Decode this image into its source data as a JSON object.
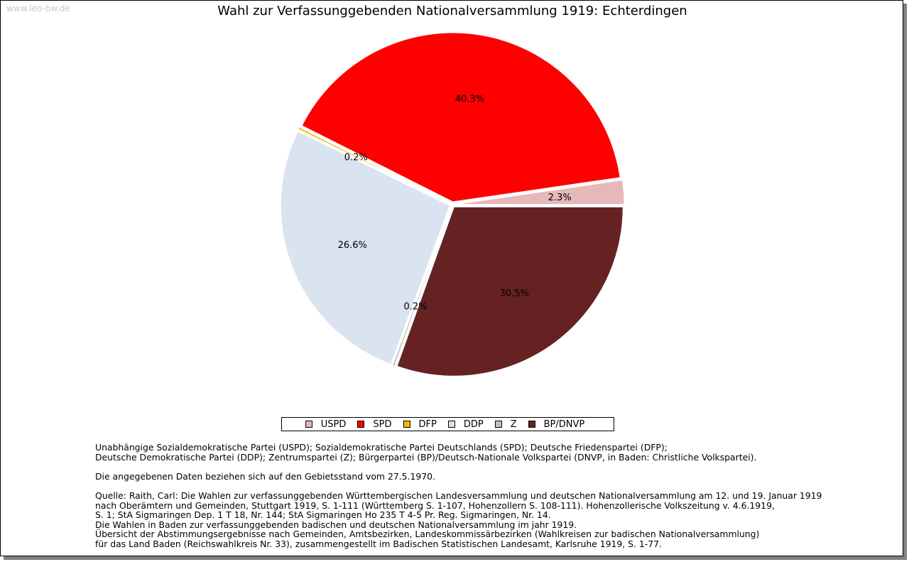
{
  "watermark": "www.leo-bw.de",
  "chart_data": {
    "type": "pie",
    "title": "Wahl zur Verfassunggebenden Nationalversammlung 1919: Echterdingen",
    "categories": [
      "USPD",
      "SPD",
      "DFP",
      "DDP",
      "Z",
      "BP/DNVP"
    ],
    "values": [
      2.3,
      40.3,
      0.2,
      26.6,
      0.2,
      30.5
    ],
    "labels": [
      "2.3%",
      "40.3%",
      "0.2%",
      "26.6%",
      "0.2%",
      "30.5%"
    ],
    "colors": [
      "#e6b8b8",
      "#ff0000",
      "#f5b800",
      "#dae3f0",
      "#c0c0c0",
      "#662222"
    ],
    "legend_position": "bottom"
  },
  "notes": {
    "parties": "Unabhängige Sozialdemokratische Partei (USPD); Sozialdemokratische Partei Deutschlands (SPD); Deutsche Friedenspartei (DFP);\nDeutsche Demokratische Partei (DDP); Zentrumspartei (Z); Bürgerpartei (BP)/Deutsch-Nationale Volkspartei (DNVP, in Baden: Christliche Volkspartei).",
    "territory": "Die angegebenen Daten beziehen sich auf den Gebietsstand vom 27.5.1970.",
    "source": "Quelle: Raith, Carl: Die Wahlen zur verfassunggebenden Württembergischen Landesversammlung und deutschen Nationalversammlung am 12. und 19. Januar 1919\nnach Oberämtern und Gemeinden, Stuttgart 1919, S. 1-111 (Württemberg S. 1-107, Hohenzollern S. 108-111). Hohenzollerische Volkszeitung v. 4.6.1919,\nS. 1; StA Sigmaringen Dep. 1 T 18, Nr. 144; StA Sigmaringen Ho 235 T 4-5 Pr. Reg. Sigmaringen, Nr. 14.\nDie Wahlen in Baden zur verfassunggebenden badischen und deutschen Nationalversammlung im jahr 1919.\nÜbersicht der Abstimmungsergebnisse nach Gemeinden, Amtsbezirken, Landeskommissärbezirken (Wahlkreisen zur badischen Nationalversammlung)\nfür das Land Baden (Reichswahlkreis Nr. 33), zusammengestellt im Badischen Statistischen Landesamt, Karlsruhe 1919, S. 1-77."
  }
}
